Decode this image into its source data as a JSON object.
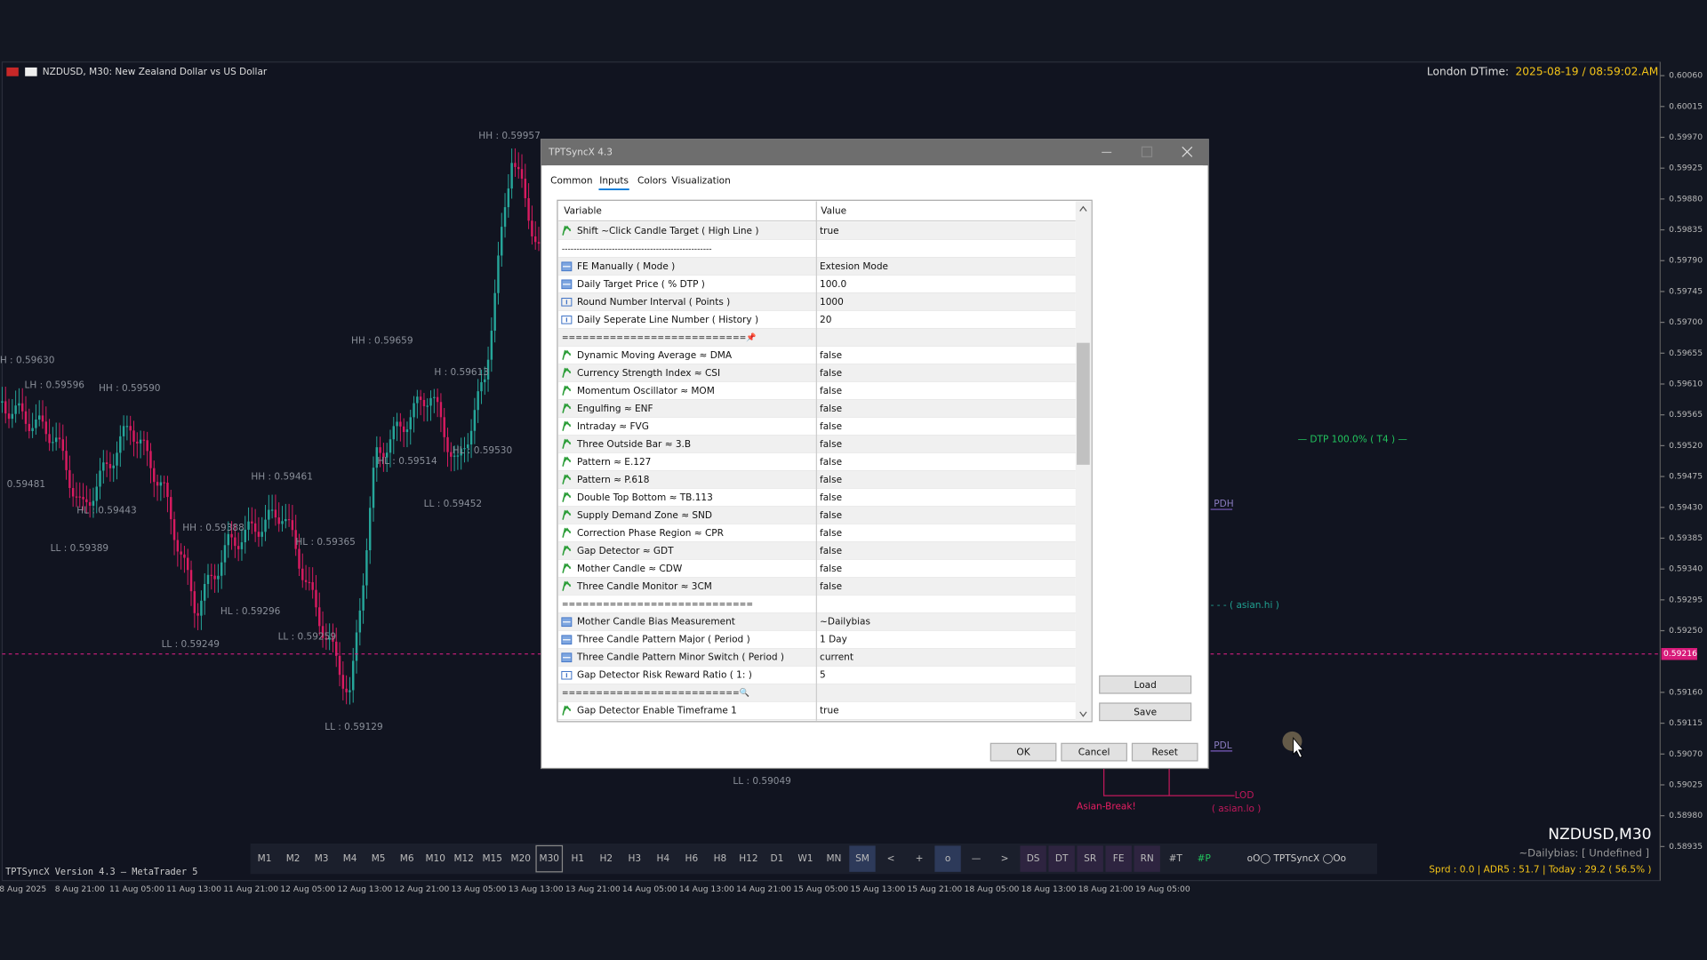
{
  "chart": {
    "symbol_title": "NZDUSD, M30:  New Zealand Dollar vs US Dollar",
    "london_label": "London DTime:",
    "london_time": "2025-08-19 / 08:59:02.AM",
    "price_ticks": [
      "0.60060",
      "0.60015",
      "0.59970",
      "0.59925",
      "0.59880",
      "0.59835",
      "0.59790",
      "0.59745",
      "0.59700",
      "0.59655",
      "0.59610",
      "0.59565",
      "0.59520",
      "0.59475",
      "0.59430",
      "0.59385",
      "0.59340",
      "0.59295",
      "0.59250",
      "0.59160",
      "0.59115",
      "0.59070",
      "0.59025",
      "0.58980",
      "0.58935"
    ],
    "current_price": "0.59216",
    "time_labels": [
      "8 Aug 2025",
      "8 Aug 21:00",
      "11 Aug 05:00",
      "11 Aug 13:00",
      "11 Aug 21:00",
      "12 Aug 05:00",
      "12 Aug 13:00",
      "12 Aug 21:00",
      "13 Aug 05:00",
      "13 Aug 13:00",
      "13 Aug 21:00",
      "14 Aug 05:00",
      "14 Aug 13:00",
      "14 Aug 21:00",
      "15 Aug 05:00",
      "15 Aug 13:00",
      "15 Aug 21:00",
      "18 Aug 05:00",
      "18 Aug 13:00",
      "18 Aug 21:00",
      "19 Aug 05:00"
    ],
    "annotations": [
      "HH : 0.59957",
      "HH : 0.59659",
      "H : 0.59630",
      "LH : 0.59596",
      "HH : 0.59590",
      "H : 0.59613",
      "HH : 0.59461",
      "HL : 0.59443",
      "LL : 0.59389",
      "HH : 0.59388",
      "HL : 0.59296",
      "LL : 0.59249",
      "LL : 0.59259",
      "LL : 0.59129",
      "LL : 0.59452",
      "HL : 0.59530",
      "HL : 0.59514",
      "HL : 0.59365",
      "LL : 0.59049",
      "0.59481"
    ],
    "levels": {
      "dtp": "— DTP 100.0% ( T4 ) —",
      "pdh": "PDH",
      "asian_hi": "- - - ( asian.hi )",
      "pdl": "PDL",
      "lod": "LOD",
      "asian_lo": "( asian.lo )",
      "asian_break": "Asian-Break!"
    },
    "info": {
      "symbol": "NZDUSD,M30",
      "bias": "~Dailybias: [ Undefined ]",
      "stats": "Sprd : 0.0 | ADR5 : 51.7 | Today : 29.2 ( 56.5% )"
    },
    "version": "TPTSyncX Version 4.3 — MetaTrader 5"
  },
  "toolbar": {
    "buttons": [
      "M1",
      "M2",
      "M3",
      "M4",
      "M5",
      "M6",
      "M10",
      "M12",
      "M15",
      "M20",
      "M30",
      "H1",
      "H2",
      "H3",
      "H4",
      "H6",
      "H8",
      "H12",
      "D1",
      "W1",
      "MN",
      "SM",
      "<",
      "+",
      "o",
      "—",
      ">",
      "DS",
      "DT",
      "SR",
      "FE",
      "RN",
      "#T",
      "#P"
    ],
    "brand": "oO◯ TPTSyncX ◯Oo"
  },
  "dialog": {
    "title": "TPTSyncX 4.3",
    "tabs": [
      "Common",
      "Inputs",
      "Colors",
      "Visualization"
    ],
    "table": {
      "headers": [
        "Variable",
        "Value"
      ],
      "rows": [
        [
          "Shift ~Click Candle Target ( High Line )",
          "true"
        ],
        [
          "---------------------------------------------------"
        ],
        [
          "FE Manually ( Mode )",
          "Extesion Mode"
        ],
        [
          "Daily Target Price ( % DTP )",
          "100.0"
        ],
        [
          "Round Number Interval ( Points )",
          "1000"
        ],
        [
          "Daily Seperate Line Number ( History )",
          "20"
        ],
        [
          "===========================📌"
        ],
        [
          "Dynamic Moving Average ≈ DMA",
          "false"
        ],
        [
          "Currency Strength Index ≈ CSI",
          "false"
        ],
        [
          "Momentum Oscillator ≈ MOM",
          "false"
        ],
        [
          "Engulfing ≈ ENF",
          "false"
        ],
        [
          "Intraday ≈ FVG",
          "false"
        ],
        [
          "Three Outside Bar ≈ 3.B",
          "false"
        ],
        [
          "Pattern ≈ E.127",
          "false"
        ],
        [
          "Pattern ≈ P.618",
          "false"
        ],
        [
          "Double Top Bottom ≈ TB.113",
          "false"
        ],
        [
          "Supply Demand Zone ≈ SND",
          "false"
        ],
        [
          "Correction Phase Region ≈ CPR",
          "false"
        ],
        [
          "Gap Detector ≈ GDT",
          "false"
        ],
        [
          "Mother Candle ≈ CDW",
          "false"
        ],
        [
          "Three Candle Monitor ≈ 3CM",
          "false"
        ],
        [
          "============================"
        ],
        [
          "Mother Candle Bias Measurement",
          "~Dailybias"
        ],
        [
          "Three Candle Pattern Major ( Period )",
          "1 Day"
        ],
        [
          "Three Candle Pattern Minor Switch ( Period )",
          "current"
        ],
        [
          "Gap Detector Risk Reward Ratio ( 1: )",
          "5"
        ],
        [
          "==========================🔍"
        ],
        [
          "Gap Detector Enable Timeframe 1",
          "true"
        ]
      ]
    },
    "buttons": {
      "load": "Load",
      "save": "Save",
      "ok": "OK",
      "cancel": "Cancel",
      "reset": "Reset"
    }
  }
}
